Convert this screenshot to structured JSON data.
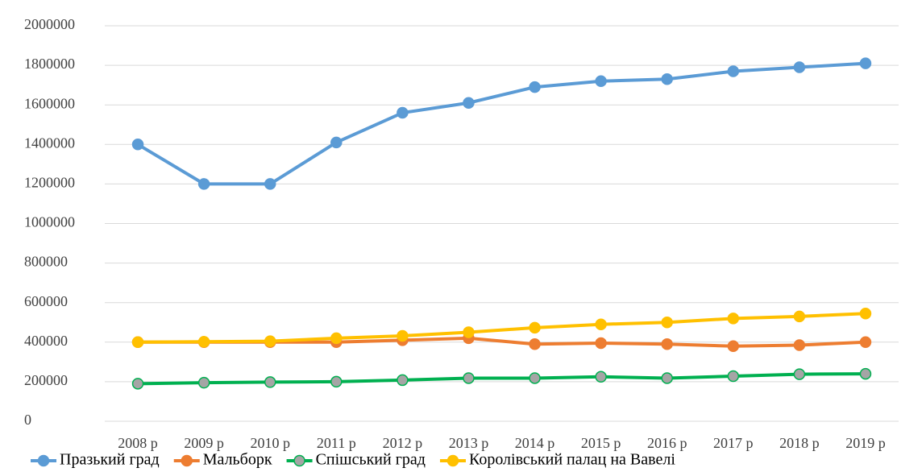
{
  "chart_data": {
    "type": "line",
    "categories": [
      "2008 р",
      "2009 р",
      "2010 р",
      "2011 р",
      "2012 р",
      "2013 р",
      "2014 р",
      "2015 р",
      "2016 р",
      "2017 р",
      "2018 р",
      "2019 р"
    ],
    "series": [
      {
        "name": "Празький град",
        "color": "#5b9bd5",
        "marker_color": "#5b9bd5",
        "values": [
          1400000,
          1200000,
          1200000,
          1410000,
          1560000,
          1610000,
          1690000,
          1720000,
          1730000,
          1770000,
          1790000,
          1810000
        ]
      },
      {
        "name": "Мальборк",
        "color": "#ed7d31",
        "marker_color": "#ed7d31",
        "values": [
          400000,
          400000,
          400000,
          400000,
          410000,
          420000,
          390000,
          395000,
          390000,
          380000,
          385000,
          400000
        ]
      },
      {
        "name": "Спішський град",
        "color": "#00b050",
        "marker_color": "#a5a5a5",
        "values": [
          190000,
          195000,
          198000,
          200000,
          208000,
          218000,
          218000,
          225000,
          218000,
          228000,
          238000,
          240000
        ]
      },
      {
        "name": "Королівський палац на Вавелі",
        "color": "#ffc000",
        "marker_color": "#ffc000",
        "values": [
          400000,
          402000,
          405000,
          420000,
          432000,
          450000,
          473000,
          490000,
          500000,
          520000,
          530000,
          545000
        ]
      }
    ],
    "ylim": [
      0,
      2000000
    ],
    "yticks": [
      0,
      200000,
      400000,
      600000,
      800000,
      1000000,
      1200000,
      1400000,
      1600000,
      1800000,
      2000000
    ],
    "grid": true,
    "legend": "bottom"
  }
}
